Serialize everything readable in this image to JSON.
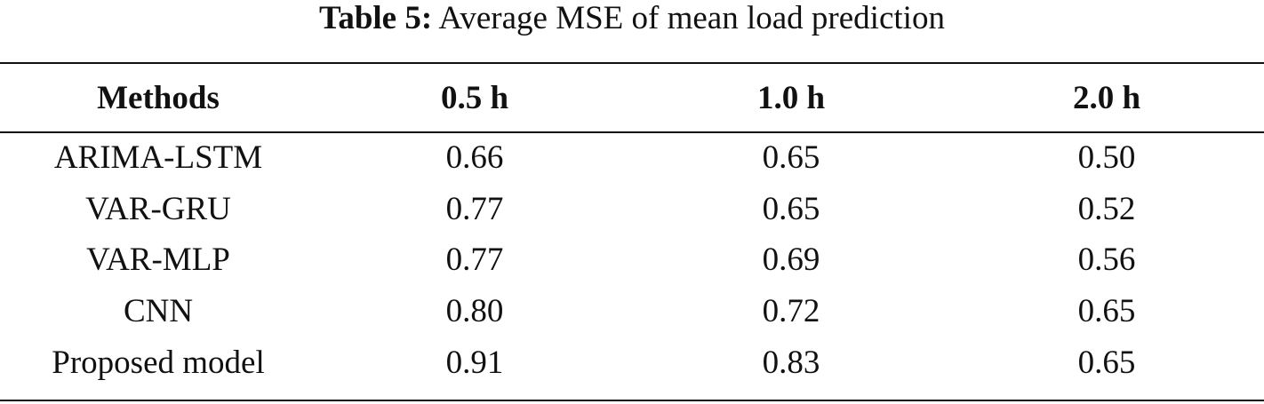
{
  "caption": {
    "label": "Table 5:",
    "text": " Average MSE of mean load prediction"
  },
  "table": {
    "headers": [
      "Methods",
      "0.5 h",
      "1.0 h",
      "2.0 h"
    ],
    "rows": [
      [
        "ARIMA-LSTM",
        "0.66",
        "0.65",
        "0.50"
      ],
      [
        "VAR-GRU",
        "0.77",
        "0.65",
        "0.52"
      ],
      [
        "VAR-MLP",
        "0.77",
        "0.69",
        "0.56"
      ],
      [
        "CNN",
        "0.80",
        "0.72",
        "0.65"
      ],
      [
        "Proposed model",
        "0.91",
        "0.83",
        "0.65"
      ]
    ]
  }
}
